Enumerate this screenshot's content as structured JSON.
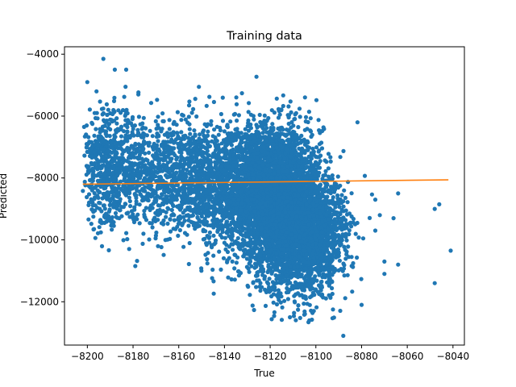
{
  "chart_data": {
    "type": "scatter",
    "title": "Training data",
    "xlabel": "True",
    "ylabel": "Predicted",
    "xlim": [
      -8210,
      -8035
    ],
    "ylim": [
      -13400,
      -3760
    ],
    "x_ticks": [
      -8200,
      -8180,
      -8160,
      -8140,
      -8120,
      -8100,
      -8080,
      -8060,
      -8040
    ],
    "y_ticks": [
      -12000,
      -10000,
      -8000,
      -6000,
      -4000
    ],
    "grid": false,
    "scatter_color": "#1f77b4",
    "line_color": "#ff7f0e",
    "fit_line": {
      "x": [
        -8202,
        -8042
      ],
      "y": [
        -8200,
        -8060
      ]
    },
    "clusters": [
      {
        "cx": -8118,
        "cy": -8600,
        "sx": 10,
        "sy": 1100,
        "n": 3000
      },
      {
        "cx": -8108,
        "cy": -9800,
        "sx": 8,
        "sy": 1000,
        "n": 1800
      },
      {
        "cx": -8135,
        "cy": -8200,
        "sx": 14,
        "sy": 1000,
        "n": 1400
      },
      {
        "cx": -8165,
        "cy": -7900,
        "sx": 15,
        "sy": 900,
        "n": 1100
      },
      {
        "cx": -8190,
        "cy": -7600,
        "sx": 7,
        "sy": 950,
        "n": 500
      },
      {
        "cx": -8098,
        "cy": -9900,
        "sx": 7,
        "sy": 800,
        "n": 500
      }
    ],
    "outliers": [
      [
        -8193,
        -4150
      ],
      [
        -8183,
        -4500
      ],
      [
        -8188,
        -4500
      ],
      [
        -8126,
        -4730
      ],
      [
        -8088,
        -13100
      ],
      [
        -8041,
        -10350
      ],
      [
        -8048,
        -11400
      ],
      [
        -8046,
        -8850
      ],
      [
        -8048,
        -9000
      ],
      [
        -8064,
        -8500
      ],
      [
        -8066,
        -9300
      ],
      [
        -8074,
        -8700
      ],
      [
        -8072,
        -9200
      ],
      [
        -8074,
        -9700
      ],
      [
        -8080,
        -12100
      ],
      [
        -8070,
        -10700
      ],
      [
        -8064,
        -10800
      ],
      [
        -8070,
        -11100
      ],
      [
        -8200,
        -4900
      ],
      [
        -8196,
        -5200
      ]
    ]
  }
}
